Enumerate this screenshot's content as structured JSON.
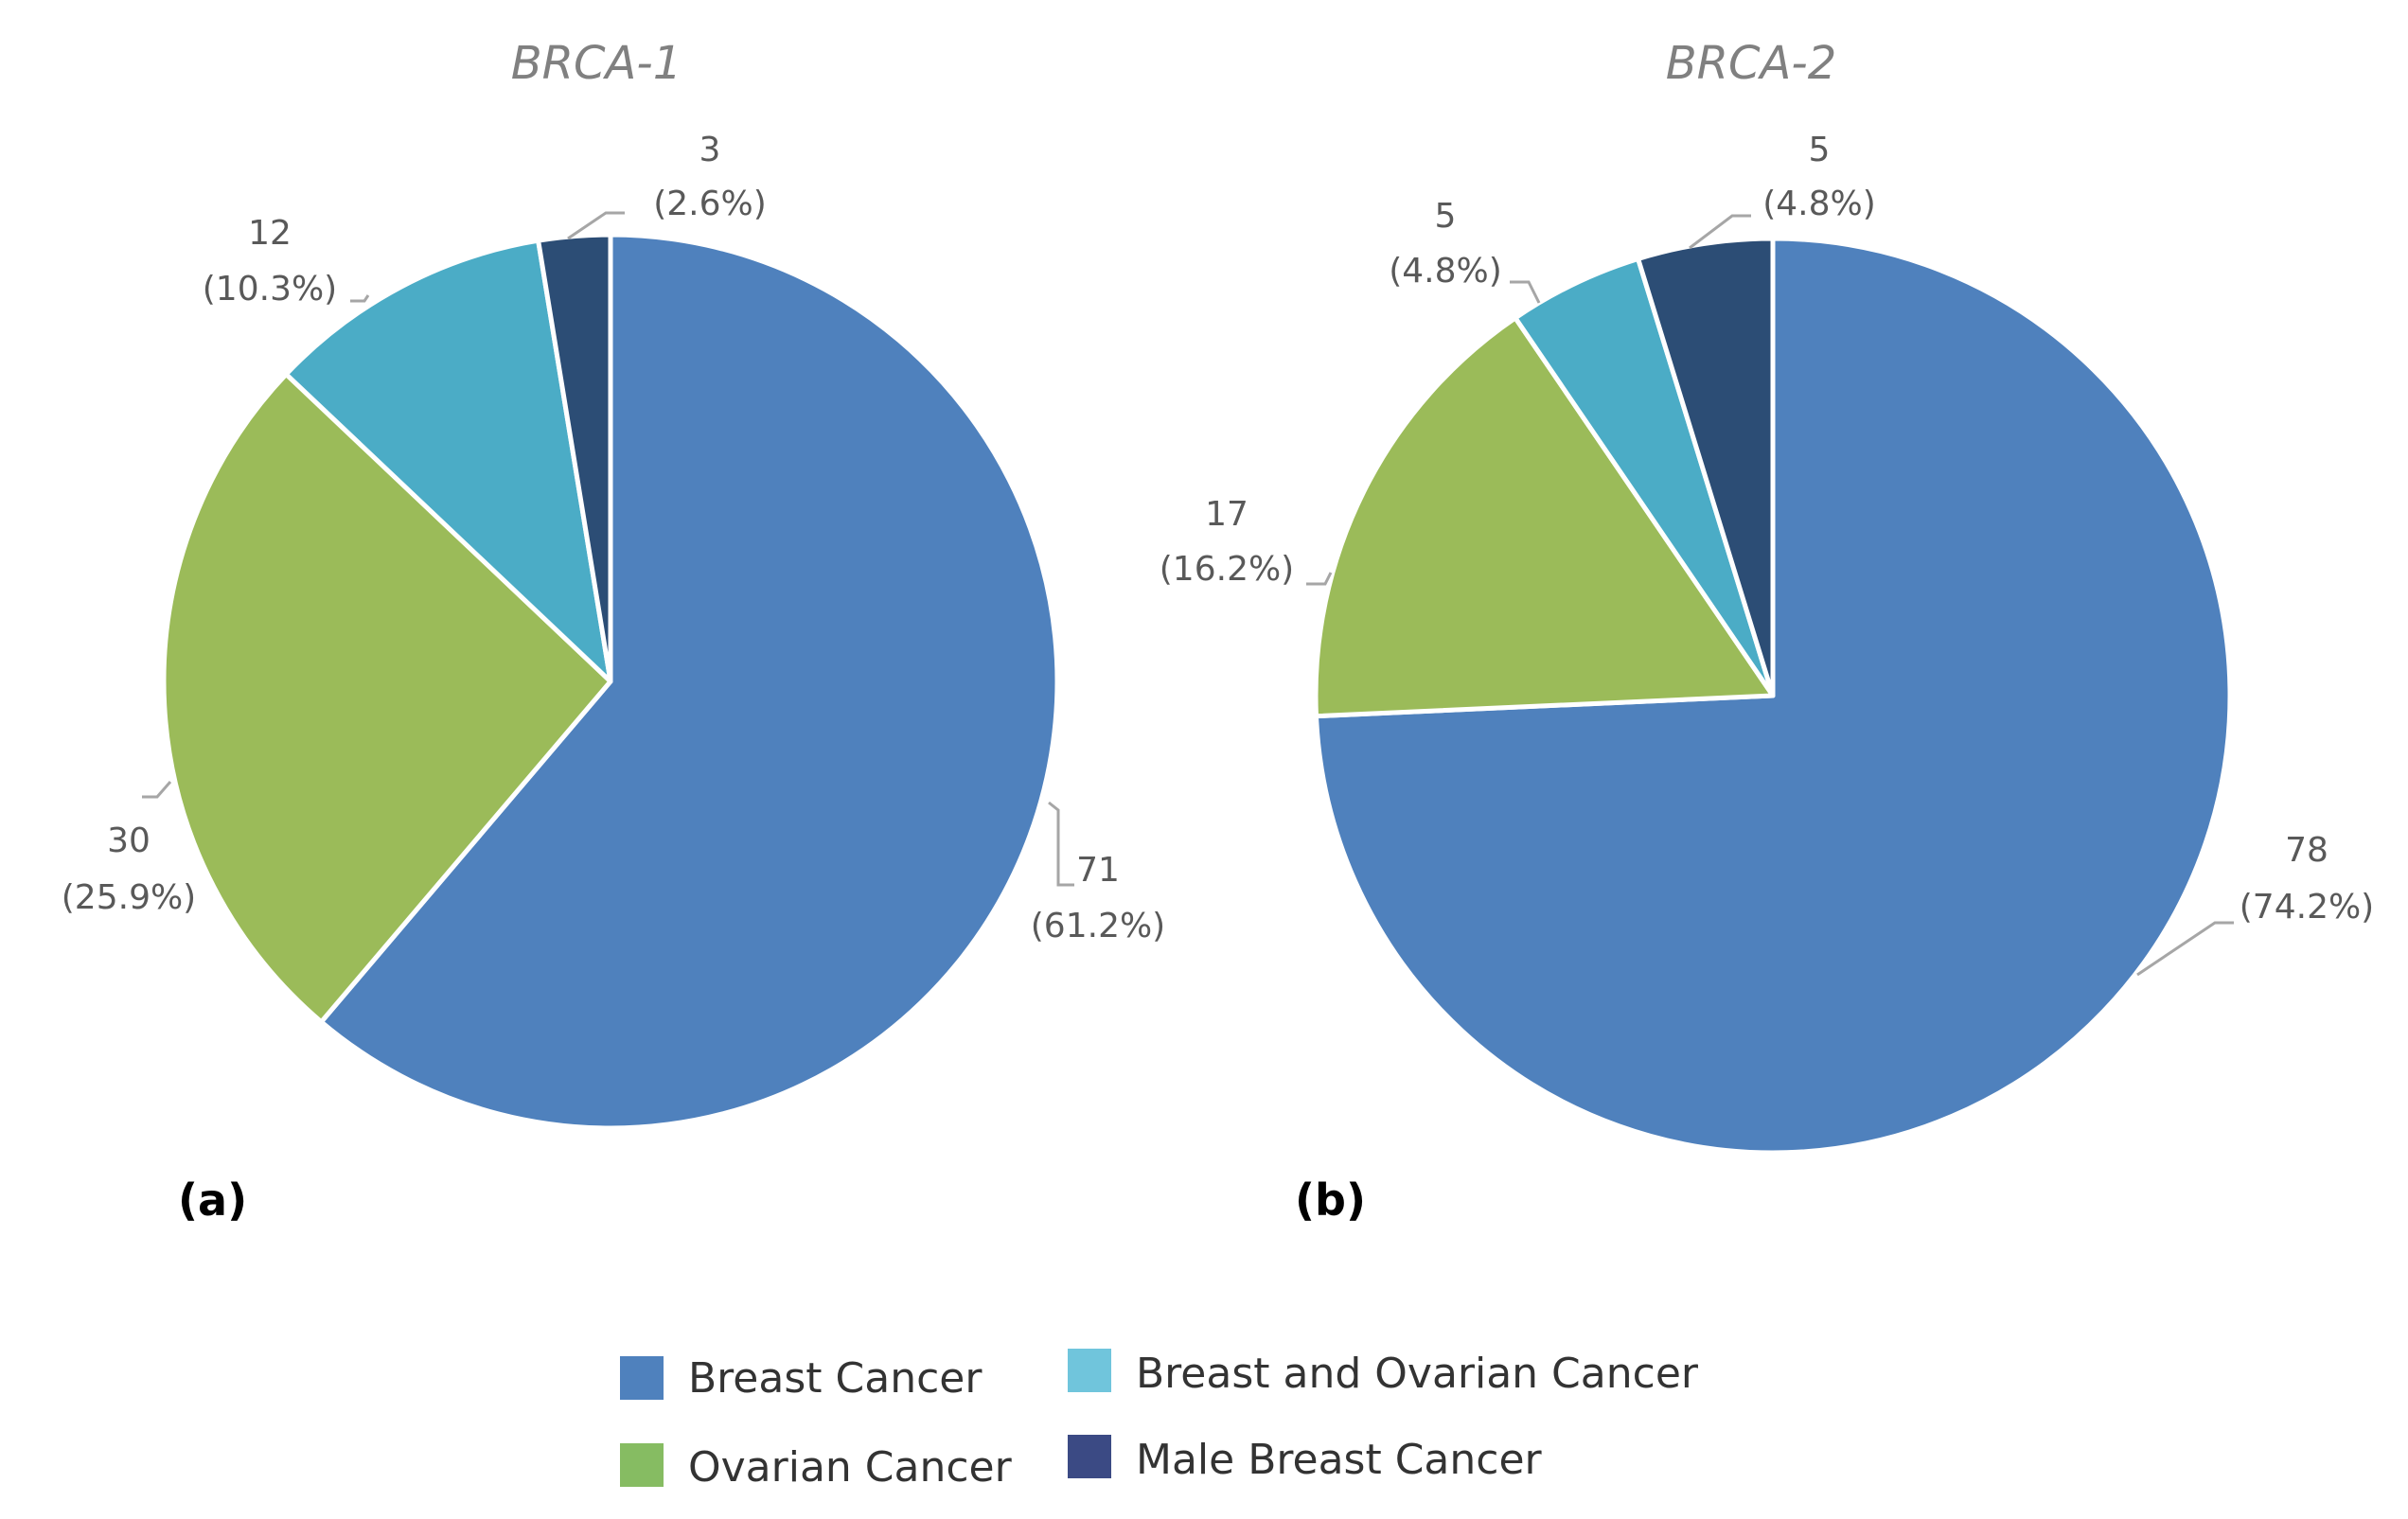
{
  "chart_data": [
    {
      "type": "pie",
      "title": "BRCA-1",
      "panel": "(a)",
      "categories": [
        "Breast Cancer",
        "Ovarian Cancer",
        "Breast and Ovarian Cancer",
        "Male Breast Cancer"
      ],
      "values": [
        71,
        30,
        12,
        3
      ],
      "labels": [
        {
          "value": "71",
          "percent": "(61.2%)"
        },
        {
          "value": "30",
          "percent": "(25.9%)"
        },
        {
          "value": "12",
          "percent": "(10.3%)"
        },
        {
          "value": "3",
          "percent": "(2.6%)"
        }
      ]
    },
    {
      "type": "pie",
      "title": "BRCA-2",
      "panel": "(b)",
      "categories": [
        "Breast Cancer",
        "Ovarian Cancer",
        "Breast and Ovarian Cancer",
        "Male Breast Cancer"
      ],
      "values": [
        78,
        17,
        5,
        5
      ],
      "labels": [
        {
          "value": "78",
          "percent": "(74.2%)"
        },
        {
          "value": "17",
          "percent": "(16.2%)"
        },
        {
          "value": "5",
          "percent": "(4.8%)"
        },
        {
          "value": "5",
          "percent": "(4.8%)"
        }
      ]
    }
  ],
  "legend": [
    {
      "label": "Breast Cancer",
      "color": "#4f81bd"
    },
    {
      "label": "Breast and Ovarian Cancer",
      "color": "#70c5dc"
    },
    {
      "label": "Ovarian Cancer",
      "color": "#86bc62"
    },
    {
      "label": "Male Breast Cancer",
      "color": "#3b4a84"
    }
  ],
  "colors": {
    "breast": "#4f81bd",
    "ovarian": "#9bbb59",
    "breast_and_ovarian": "#4bacc6",
    "male_breast": "#2c4d75"
  }
}
